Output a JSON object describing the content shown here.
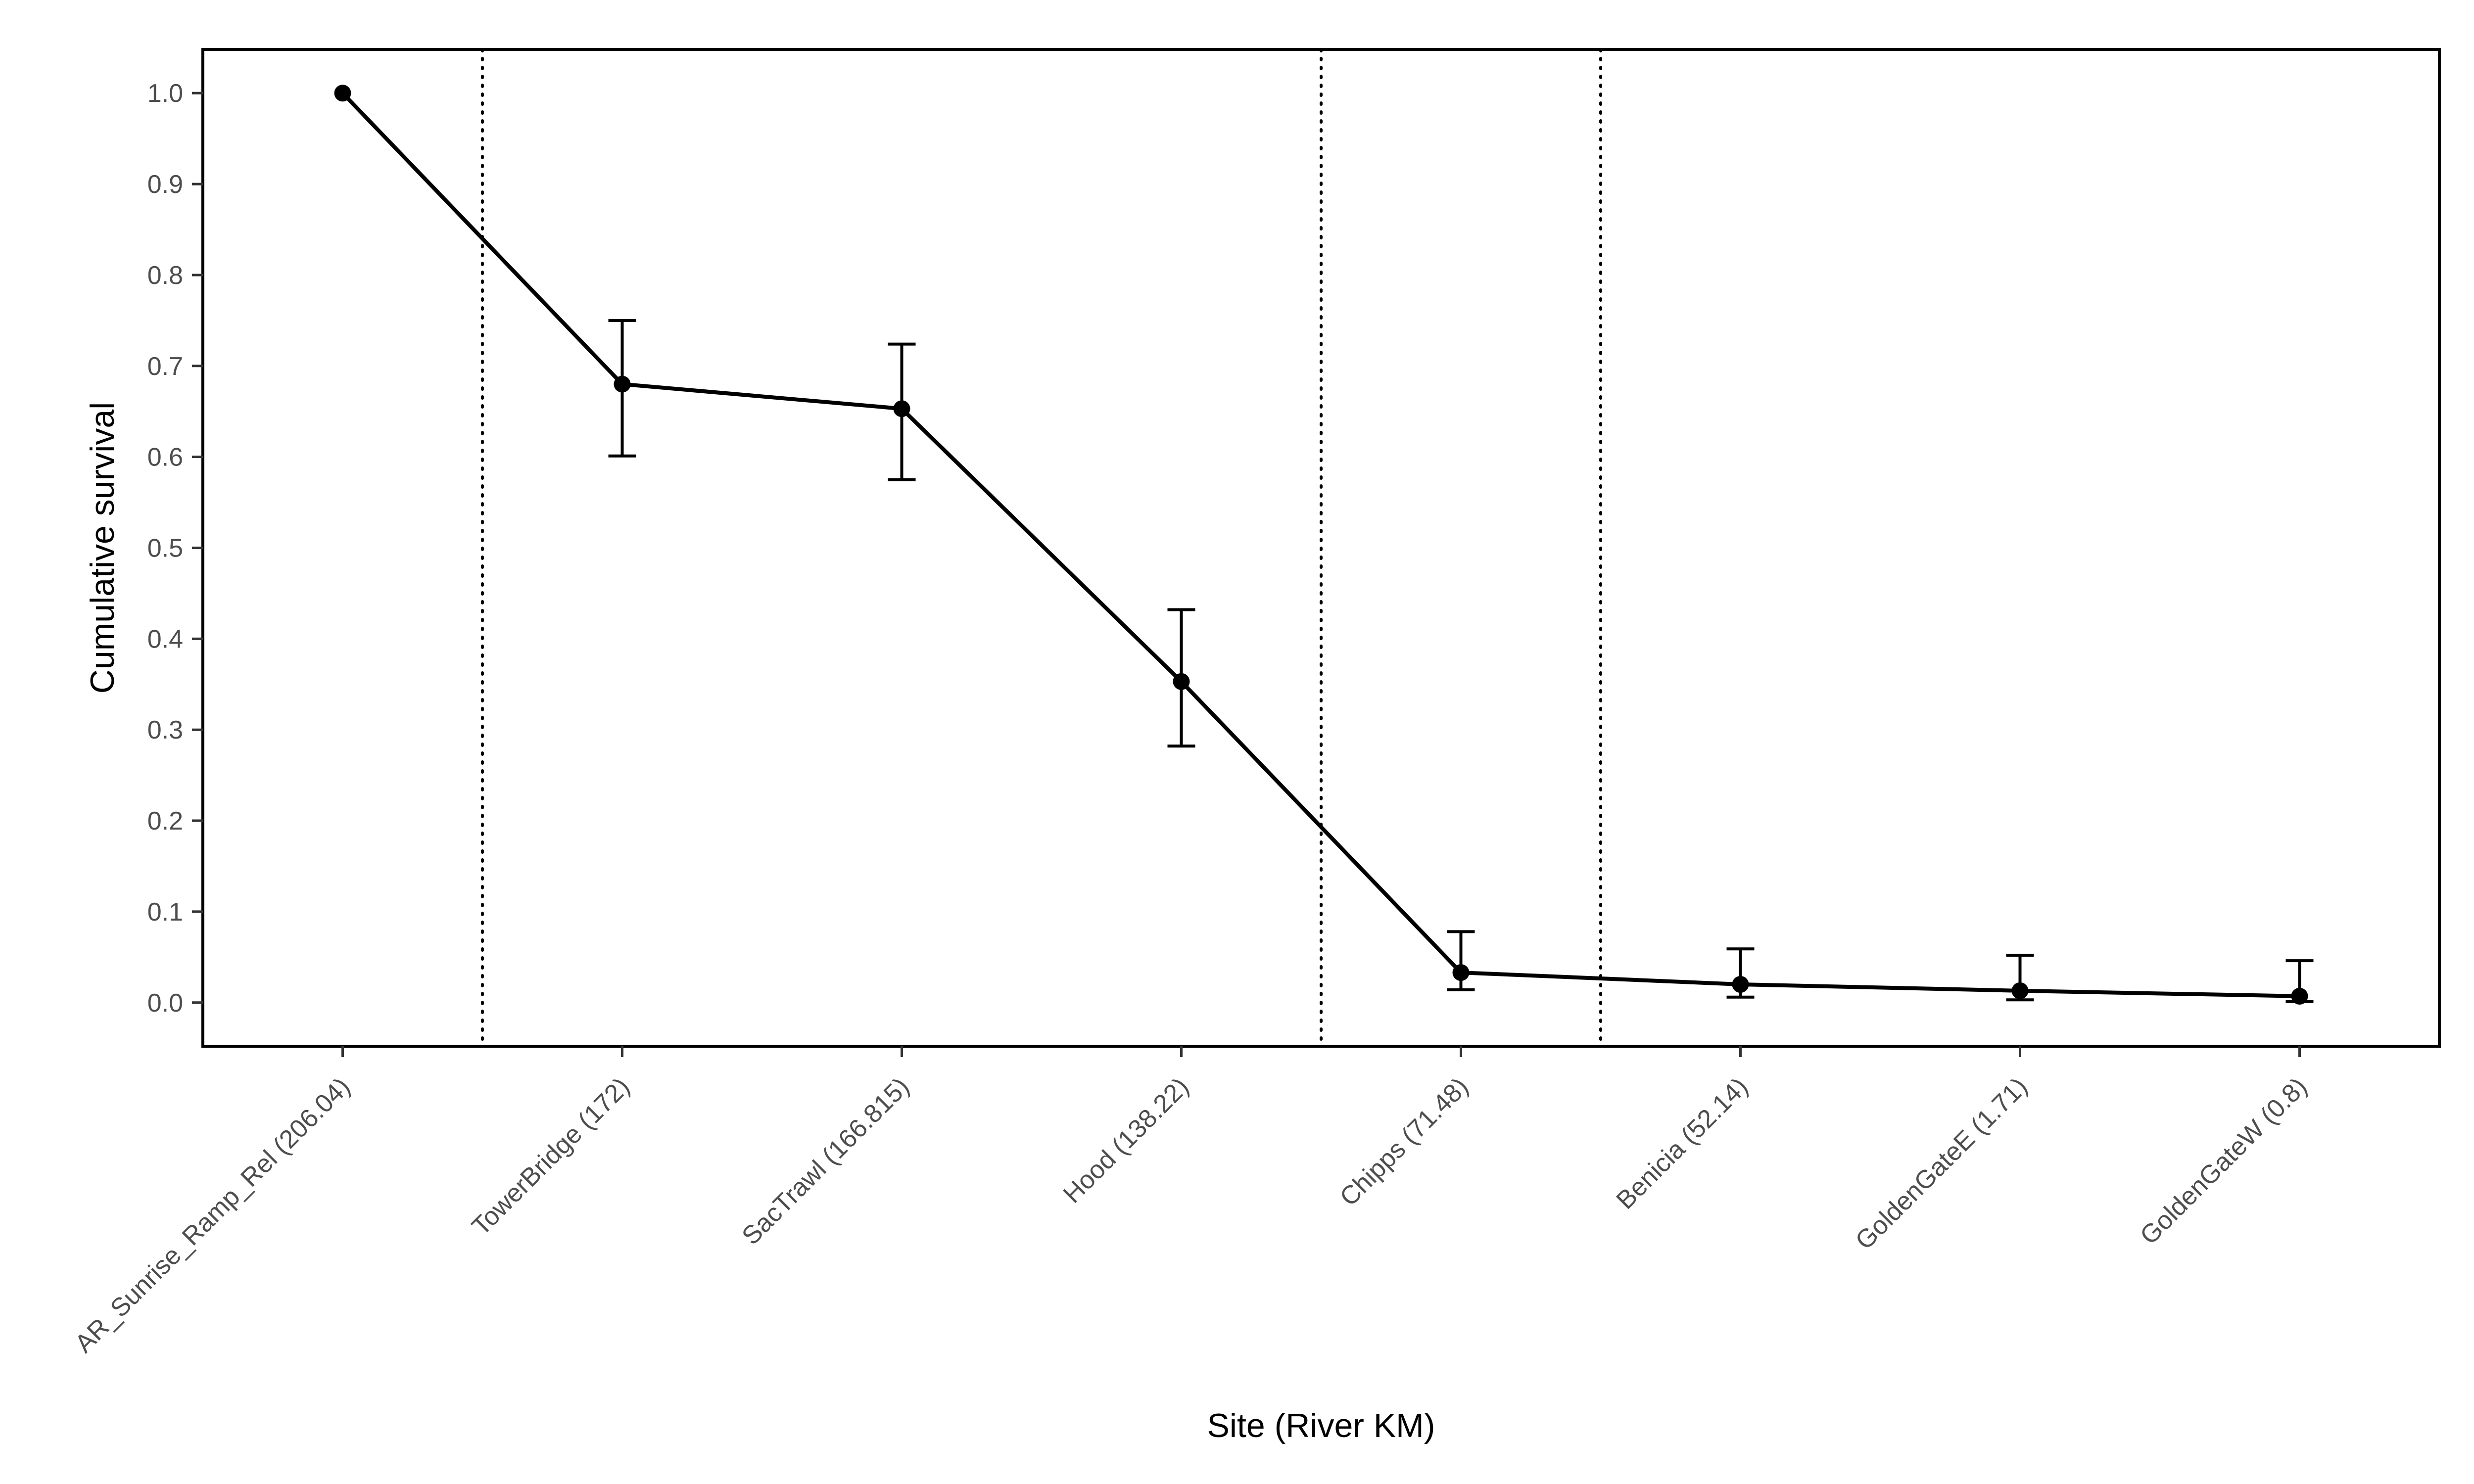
{
  "chart_data": {
    "type": "line",
    "xlabel": "Site (River KM)",
    "ylabel": "Cumulative survival",
    "categories": [
      "AR_Sunrise_Ramp_Rel (206.04)",
      "TowerBridge (172)",
      "SacTrawl (166.815)",
      "Hood (138.22)",
      "Chipps (71.48)",
      "Benicia (52.14)",
      "GoldenGateE (1.71)",
      "GoldenGateW (0.8)"
    ],
    "series": [
      {
        "values": [
          1.0,
          0.68,
          0.653,
          0.353,
          0.033,
          0.02,
          0.013,
          0.007
        ],
        "lower": [
          1.0,
          0.601,
          0.575,
          0.282,
          0.014,
          0.006,
          0.003,
          0.001
        ],
        "upper": [
          1.0,
          0.75,
          0.724,
          0.432,
          0.078,
          0.059,
          0.052,
          0.046
        ]
      }
    ],
    "vlines_between": [
      [
        0,
        1
      ],
      [
        3,
        4
      ],
      [
        4,
        5
      ]
    ],
    "yticks": [
      "0.0",
      "0.1",
      "0.2",
      "0.3",
      "0.4",
      "0.5",
      "0.6",
      "0.7",
      "0.8",
      "0.9",
      "1.0"
    ],
    "ylim": [
      -0.048,
      1.048
    ],
    "grid": false,
    "legend": "none",
    "colors": {
      "line": "#000000",
      "points": "#000000",
      "errorbars": "#000000",
      "vlines": "#000000"
    }
  }
}
